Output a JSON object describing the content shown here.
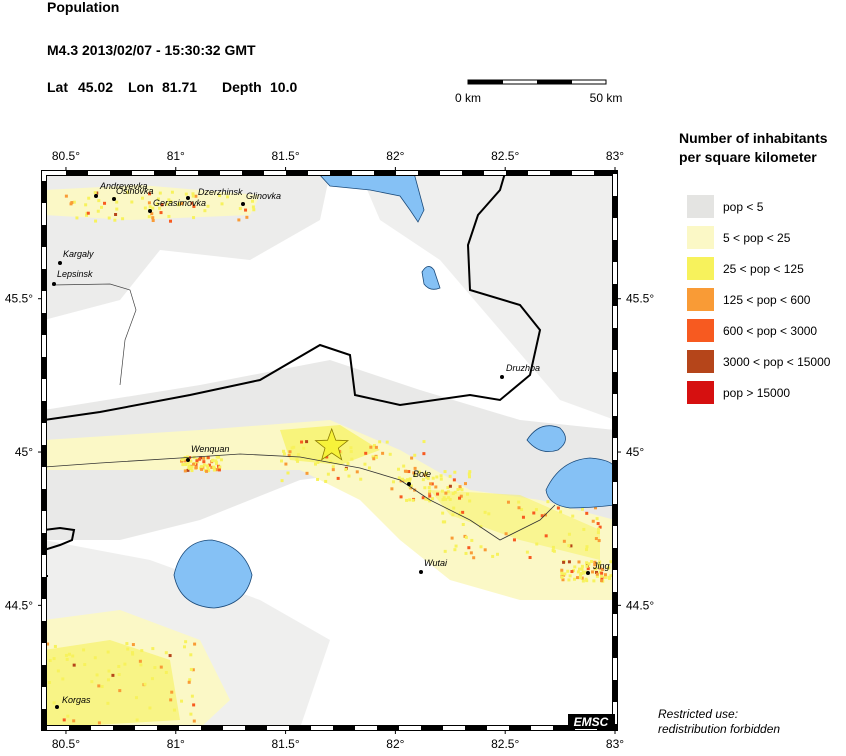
{
  "header": {
    "title": "Population",
    "event": "M4.3  2013/02/07 - 15:30:32 GMT",
    "lat_label": "Lat",
    "lat": 45.02,
    "lon_label": "Lon",
    "lon": 81.71,
    "depth_label": "Depth",
    "depth": "10.0"
  },
  "scale_bar": {
    "start": "0 km",
    "end": "50 km"
  },
  "map": {
    "xlim": [
      80.4,
      83
    ],
    "ylim": [
      44.1,
      45.91
    ],
    "xticks": [
      {
        "value": 80.5,
        "label": "80.5°"
      },
      {
        "value": 81,
        "label": "81°"
      },
      {
        "value": 81.5,
        "label": "81.5°"
      },
      {
        "value": 82,
        "label": "82°"
      },
      {
        "value": 82.5,
        "label": "82.5°"
      },
      {
        "value": 83,
        "label": "83°"
      }
    ],
    "yticks": [
      {
        "value": 45.5,
        "label": "45.5°"
      },
      {
        "value": 45,
        "label": "45°"
      },
      {
        "value": 44.5,
        "label": "44.5°"
      }
    ],
    "places": [
      "Andreyevka",
      "Osinovka",
      "Gerasimovka",
      "Dzerzhinsk",
      "Glinovka",
      "Kargaly",
      "Lepsinsk",
      "Druzhba",
      "Wenquan",
      "Bole",
      "Wutai",
      "Jing",
      "Korgas"
    ],
    "source": "EMSC"
  },
  "legend": {
    "title": [
      "Number of inhabitants",
      "per square kilometer"
    ],
    "items": [
      {
        "name": "pop < 5",
        "color": "#e4e4e2"
      },
      {
        "name": "5 < pop < 25",
        "color": "#fbf8c6"
      },
      {
        "name": "25 < pop < 125",
        "color": "#f7f25c"
      },
      {
        "name": "125 < pop < 600",
        "color": "#f99b36"
      },
      {
        "name": "600 < pop < 3000",
        "color": "#f75a20"
      },
      {
        "name": "3000 < pop < 15000",
        "color": "#b5451a"
      },
      {
        "name": "pop > 15000",
        "color": "#d61010"
      }
    ]
  },
  "notice": [
    "Restricted use:",
    "redistribution forbidden"
  ]
}
